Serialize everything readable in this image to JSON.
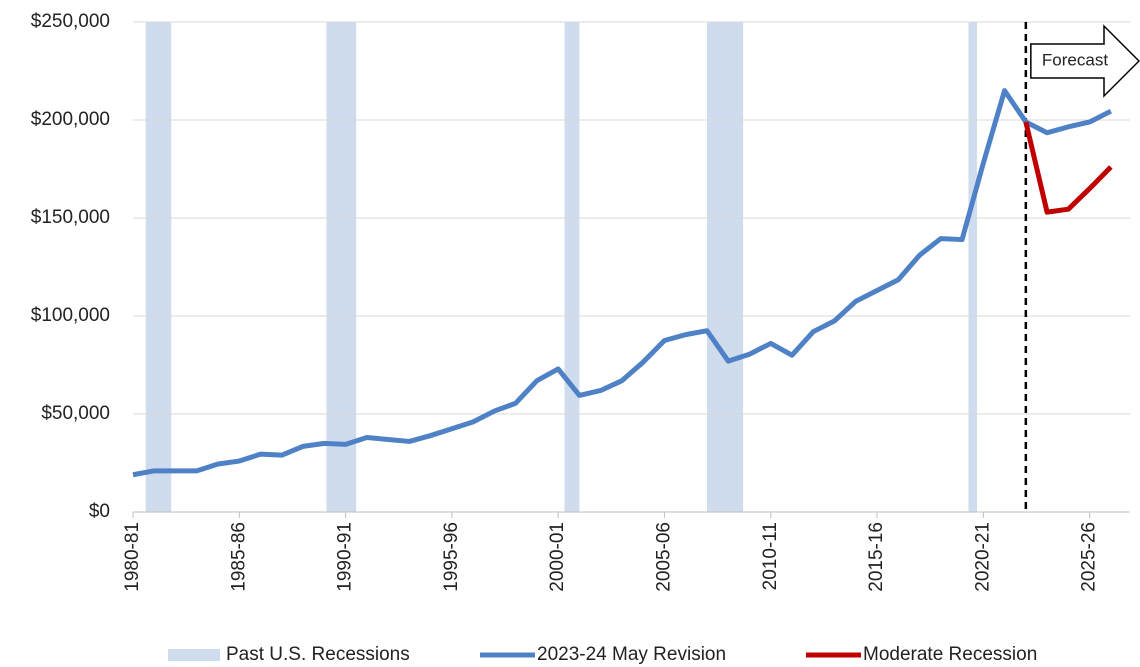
{
  "chart_data": {
    "type": "line",
    "x": [
      1980,
      1981,
      1982,
      1983,
      1984,
      1985,
      1986,
      1987,
      1988,
      1989,
      1990,
      1991,
      1992,
      1993,
      1994,
      1995,
      1996,
      1997,
      1998,
      1999,
      2000,
      2001,
      2002,
      2003,
      2004,
      2005,
      2006,
      2007,
      2008,
      2009,
      2010,
      2011,
      2012,
      2013,
      2014,
      2015,
      2016,
      2017,
      2018,
      2019,
      2020,
      2021,
      2022,
      2023,
      2024,
      2025,
      2026
    ],
    "series": [
      {
        "name": "2023-24 May Revision",
        "color": "#4f81c7",
        "values": [
          19000,
          21000,
          21000,
          21000,
          24500,
          26000,
          29500,
          29000,
          33500,
          35000,
          34500,
          38000,
          37000,
          36000,
          39000,
          42500,
          46000,
          51500,
          55500,
          67000,
          73000,
          59500,
          62000,
          67000,
          76500,
          87500,
          90500,
          92500,
          77000,
          80500,
          86000,
          80000,
          92000,
          97500,
          107500,
          113000,
          118500,
          131000,
          139500,
          139000,
          178000,
          215000,
          199000,
          193500,
          196500,
          199000,
          204500
        ]
      },
      {
        "name": "Moderate Recession",
        "color": "#c00000",
        "values": [
          null,
          null,
          null,
          null,
          null,
          null,
          null,
          null,
          null,
          null,
          null,
          null,
          null,
          null,
          null,
          null,
          null,
          null,
          null,
          null,
          null,
          null,
          null,
          null,
          null,
          null,
          null,
          null,
          null,
          null,
          null,
          null,
          null,
          null,
          null,
          null,
          null,
          null,
          null,
          null,
          null,
          null,
          199000,
          153000,
          154500,
          165000,
          176000
        ]
      }
    ],
    "recessions": {
      "name": "Past U.S. Recessions",
      "color": "#cfdcee",
      "ranges": [
        [
          1980.6,
          1981.8
        ],
        [
          1989.1,
          1990.5
        ],
        [
          2000.3,
          2001.0
        ],
        [
          2007.0,
          2008.7
        ],
        [
          2019.3,
          2019.7
        ]
      ]
    },
    "forecast": {
      "label": "Forecast",
      "start": 2022
    },
    "xlim": [
      1980,
      2026.9
    ],
    "xticks": [
      {
        "value": 1980,
        "label": "1980-81"
      },
      {
        "value": 1985,
        "label": "1985-86"
      },
      {
        "value": 1990,
        "label": "1990-91"
      },
      {
        "value": 1995,
        "label": "1995-96"
      },
      {
        "value": 2000,
        "label": "2000-01"
      },
      {
        "value": 2005,
        "label": "2005-06"
      },
      {
        "value": 2010,
        "label": "2010-11"
      },
      {
        "value": 2015,
        "label": "2015-16"
      },
      {
        "value": 2020,
        "label": "2020-21"
      },
      {
        "value": 2025,
        "label": "2025-26"
      }
    ],
    "ylim": [
      0,
      250000
    ],
    "yticks": [
      {
        "value": 0,
        "label": "$0"
      },
      {
        "value": 50000,
        "label": "$50,000"
      },
      {
        "value": 100000,
        "label": "$100,000"
      },
      {
        "value": 150000,
        "label": "$150,000"
      },
      {
        "value": 200000,
        "label": "$200,000"
      },
      {
        "value": 250000,
        "label": "$250,000"
      }
    ],
    "grid": true,
    "legend": "bottom"
  }
}
